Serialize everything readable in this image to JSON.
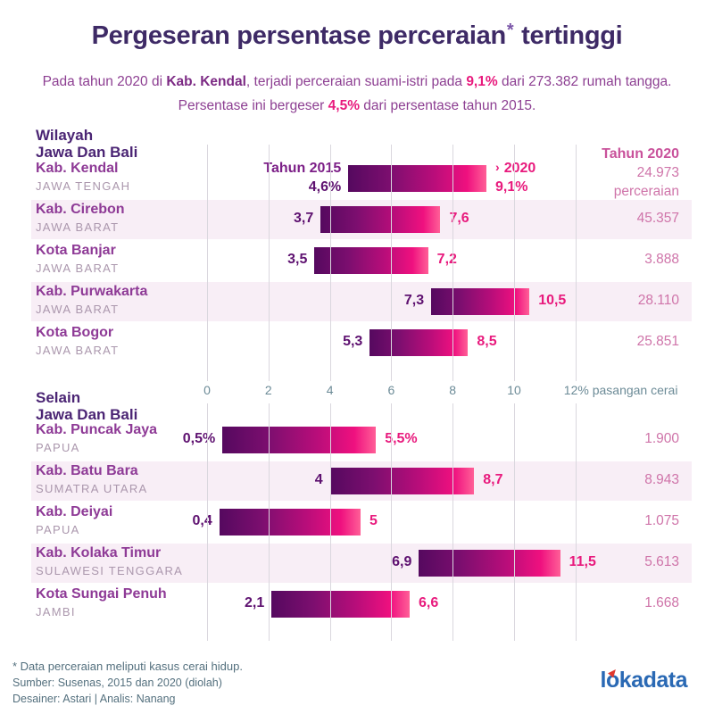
{
  "title": {
    "parts": [
      "Pergeseran persentase perceraian",
      "*",
      " tertinggi"
    ]
  },
  "subtitle": {
    "line1": [
      "Pada tahun 2020 di ",
      "Kab. Kendal",
      ", terjadi perceraian suami-istri pada ",
      "9,1%",
      " dari 273.382 rumah tangga."
    ],
    "line2": [
      "Persentase ini bergeser ",
      "4,5%",
      " dari persentase tahun 2015."
    ]
  },
  "legend": {
    "y2015": "Tahun 2015",
    "arrow": "›",
    "y2020": "2020"
  },
  "right_column": {
    "header": "Tahun 2020"
  },
  "axis": {
    "ticks": [
      {
        "v": 0,
        "label": "0"
      },
      {
        "v": 2,
        "label": "2"
      },
      {
        "v": 4,
        "label": "4"
      },
      {
        "v": 6,
        "label": "6"
      },
      {
        "v": 8,
        "label": "8"
      },
      {
        "v": 10,
        "label": "10"
      },
      {
        "v": 12,
        "label": "12% pasangan cerai"
      }
    ]
  },
  "sections": [
    {
      "header_line1": "Wilayah",
      "header_line2": "Jawa Dan Bali",
      "rows": [
        {
          "name": "Kab. Kendal",
          "province": "JAWA TENGAH",
          "v2015": 4.6,
          "v2020": 9.1,
          "label2015": "4,6%",
          "label2020": "9,1%",
          "total": "24.973",
          "total_suffix": "perceraian",
          "highlight": true
        },
        {
          "name": "Kab. Cirebon",
          "province": "JAWA BARAT",
          "v2015": 3.7,
          "v2020": 7.6,
          "label2015": "3,7",
          "label2020": "7,6",
          "total": "45.357"
        },
        {
          "name": "Kota Banjar",
          "province": "JAWA BARAT",
          "v2015": 3.5,
          "v2020": 7.2,
          "label2015": "3,5",
          "label2020": "7,2",
          "total": "3.888"
        },
        {
          "name": "Kab. Purwakarta",
          "province": "JAWA BARAT",
          "v2015": 7.3,
          "v2020": 10.5,
          "label2015": "7,3",
          "label2020": "10,5",
          "total": "28.110"
        },
        {
          "name": "Kota Bogor",
          "province": "JAWA BARAT",
          "v2015": 5.3,
          "v2020": 8.5,
          "label2015": "5,3",
          "label2020": "8,5",
          "total": "25.851"
        }
      ]
    },
    {
      "header_line1": "Selain",
      "header_line2": "Jawa Dan Bali",
      "rows": [
        {
          "name": "Kab. Puncak Jaya",
          "province": "PAPUA",
          "v2015": 0.5,
          "v2020": 5.5,
          "label2015": "0,5%",
          "label2020": "5,5%",
          "total": "1.900"
        },
        {
          "name": "Kab. Batu Bara",
          "province": "SUMATRA UTARA",
          "v2015": 4,
          "v2020": 8.7,
          "label2015": "4",
          "label2020": "8,7",
          "total": "8.943"
        },
        {
          "name": "Kab. Deiyai",
          "province": "PAPUA",
          "v2015": 0.4,
          "v2020": 5,
          "label2015": "0,4",
          "label2020": "5",
          "total": "1.075"
        },
        {
          "name": "Kab. Kolaka Timur",
          "province": "SULAWESI TENGGARA",
          "v2015": 6.9,
          "v2020": 11.5,
          "label2015": "6,9",
          "label2020": "11,5",
          "total": "5.613"
        },
        {
          "name": "Kota Sungai Penuh",
          "province": "JAMBI",
          "v2015": 2.1,
          "v2020": 6.6,
          "label2015": "2,1",
          "label2020": "6,6",
          "total": "1.668"
        }
      ]
    }
  ],
  "footer": {
    "note": "* Data perceraian meliputi kasus cerai hidup.",
    "source": "Sumber: Susenas, 2015 dan 2020 (diolah)",
    "credit": "Desainer: Astari | Analis: Nanang",
    "logo": {
      "pre": "l",
      "o": "o",
      "rest": "kadata"
    }
  },
  "colors": {
    "title_purple": "#3e2a66",
    "accent_purple": "#5e1170",
    "accent_pink": "#e81a7d",
    "bar_gradient_start": "#55095f",
    "bar_gradient_end": "#ff5f97",
    "row_shade": "#f8eef6",
    "axis_text": "#6c8b97",
    "right_values_pink": "#cf74a9",
    "logo_blue": "#2a69b4"
  },
  "chart_data": {
    "type": "bar",
    "subtype": "range_shift_2015_to_2020",
    "title": "Pergeseran persentase perceraian tertinggi",
    "xlabel": "% pasangan cerai",
    "xlim": [
      0,
      12
    ],
    "xticks": [
      0,
      2,
      4,
      6,
      8,
      10,
      12
    ],
    "grid": true,
    "legend_position": "above-first-bar",
    "groups": [
      {
        "name": "Wilayah Jawa Dan Bali",
        "categories": [
          "Kab. Kendal (Jawa Tengah)",
          "Kab. Cirebon (Jawa Barat)",
          "Kota Banjar (Jawa Barat)",
          "Kab. Purwakarta (Jawa Barat)",
          "Kota Bogor (Jawa Barat)"
        ],
        "series": [
          {
            "name": "Tahun 2015",
            "values": [
              4.6,
              3.7,
              3.5,
              7.3,
              5.3
            ]
          },
          {
            "name": "Tahun 2020",
            "values": [
              9.1,
              7.6,
              7.2,
              10.5,
              8.5
            ]
          }
        ],
        "perceraian_2020": [
          24973,
          45357,
          3888,
          28110,
          25851
        ]
      },
      {
        "name": "Selain Jawa Dan Bali",
        "categories": [
          "Kab. Puncak Jaya (Papua)",
          "Kab. Batu Bara (Sumatra Utara)",
          "Kab. Deiyai (Papua)",
          "Kab. Kolaka Timur (Sulawesi Tenggara)",
          "Kota Sungai Penuh (Jambi)"
        ],
        "series": [
          {
            "name": "Tahun 2015",
            "values": [
              0.5,
              4,
              0.4,
              6.9,
              2.1
            ]
          },
          {
            "name": "Tahun 2020",
            "values": [
              5.5,
              8.7,
              5,
              11.5,
              6.6
            ]
          }
        ],
        "perceraian_2020": [
          1900,
          8943,
          1075,
          5613,
          1668
        ]
      }
    ]
  }
}
